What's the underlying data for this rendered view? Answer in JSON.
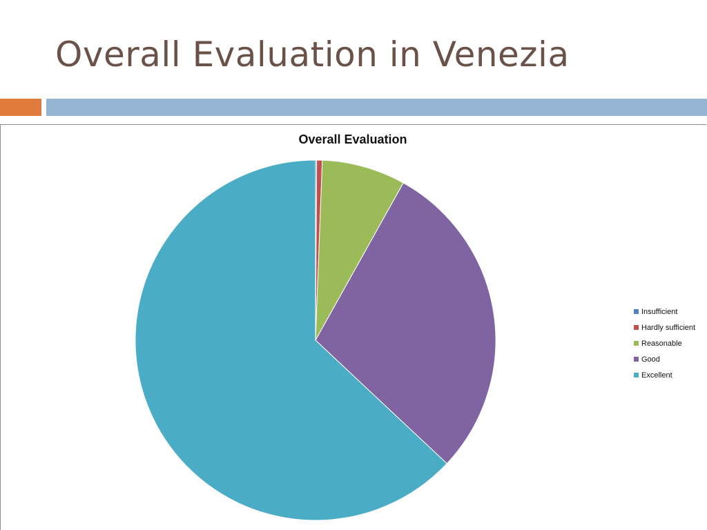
{
  "slide": {
    "title": "Overall Evaluation in Venezia"
  },
  "colors": {
    "title_text": "#6b5248",
    "accent_orange": "#e07b3c",
    "accent_blue": "#95b4d4"
  },
  "chart_data": {
    "type": "pie",
    "title": "Overall Evaluation",
    "legend_position": "right",
    "categories": [
      "Insufficient",
      "Hardly sufficient",
      "Reasonable",
      "Good",
      "Excellent"
    ],
    "values": [
      0.1,
      0.5,
      7.5,
      28.9,
      63.0
    ],
    "colors": [
      "#4f81bd",
      "#c0504d",
      "#9bbb59",
      "#8064a2",
      "#4bacc6"
    ],
    "start": "12 o'clock",
    "direction": "clockwise"
  }
}
